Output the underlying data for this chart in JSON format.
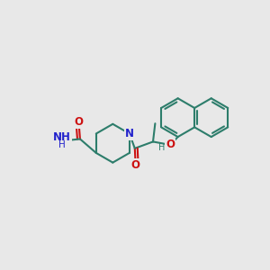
{
  "bg_color": "#e8e8e8",
  "bond_color": "#2d7d6b",
  "n_color": "#2222cc",
  "o_color": "#cc1111",
  "lw": 1.5,
  "figsize": [
    3.0,
    3.0
  ],
  "dpi": 100,
  "xlim": [
    -0.5,
    9.5
  ],
  "ylim": [
    -0.5,
    9.5
  ]
}
